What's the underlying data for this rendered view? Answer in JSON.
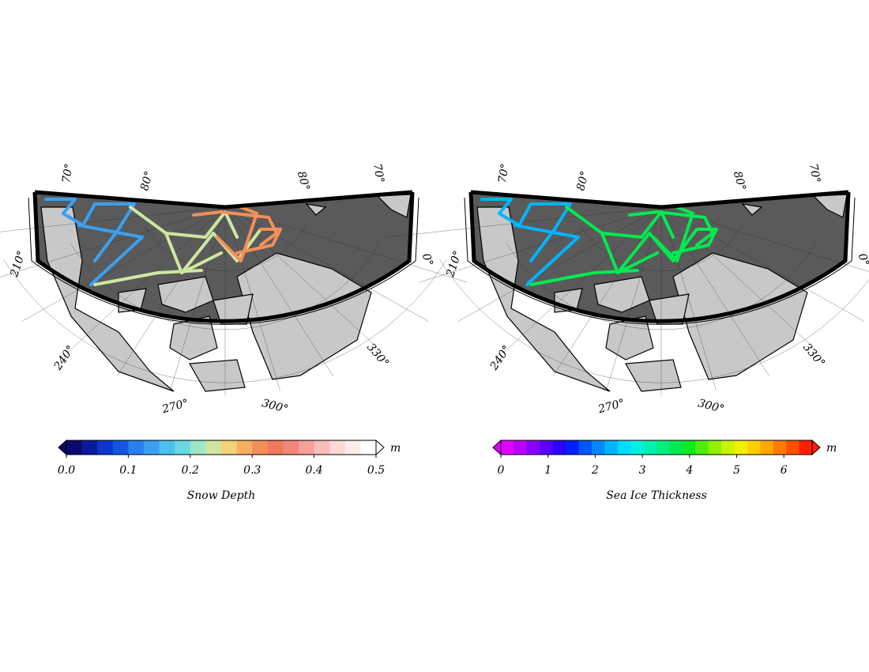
{
  "maps": [
    {
      "id": "snow-depth",
      "lon_labels": [
        "210°",
        "240°",
        "270°",
        "300°",
        "330°",
        "0°"
      ],
      "lat_labels": [
        "70°",
        "80°",
        "80°",
        "70°"
      ],
      "colorbar": {
        "title": "Snow Depth",
        "unit": "m",
        "ticks": [
          "0.0",
          "0.1",
          "0.2",
          "0.3",
          "0.4",
          "0.5"
        ],
        "colors": [
          "#0a0a6e",
          "#0b1a9a",
          "#0d35c8",
          "#1456e0",
          "#2a7ff0",
          "#3aa0f2",
          "#4cc0ee",
          "#6ad8e4",
          "#9ee6c8",
          "#cfe6a0",
          "#f2d27a",
          "#f5b060",
          "#f39058",
          "#f07a5e",
          "#f3867a",
          "#f6a09a",
          "#f9bcb8",
          "#fcd8d6",
          "#fdecea",
          "#ffffff"
        ]
      }
    },
    {
      "id": "sea-ice-thickness",
      "lon_labels": [
        "210°",
        "240°",
        "270°",
        "300°",
        "330°",
        "0°"
      ],
      "lat_labels": [
        "70°",
        "80°",
        "80°",
        "70°"
      ],
      "colorbar": {
        "title": "Sea Ice Thickness",
        "unit": "m",
        "ticks": [
          "0",
          "1",
          "2",
          "3",
          "4",
          "5",
          "6"
        ],
        "colors": [
          "#e000ff",
          "#b800ff",
          "#8a00ff",
          "#5a00ff",
          "#2a00ff",
          "#0020ff",
          "#0055ff",
          "#0088ff",
          "#00b4ff",
          "#00dcff",
          "#00f0e0",
          "#00f0b0",
          "#00ee80",
          "#00ea50",
          "#10e820",
          "#50ec10",
          "#90f000",
          "#c8f400",
          "#f0f000",
          "#ffd000",
          "#ffa800",
          "#ff7c00",
          "#ff5000",
          "#ff2000"
        ]
      }
    }
  ]
}
